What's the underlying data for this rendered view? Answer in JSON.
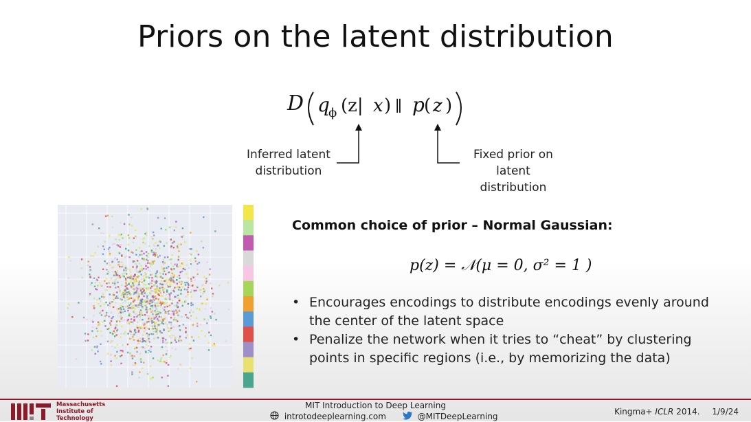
{
  "slide": {
    "title": "Priors on the latent distribution",
    "formula": {
      "D": "D",
      "q": "q",
      "phi": "ϕ",
      "args": "(z|",
      "x": "x",
      "close": ")",
      "parallel": "∥",
      "p": "p",
      "pz": "(",
      "z": "z",
      "pclose": ")"
    },
    "annotations": {
      "left": [
        "Inferred latent",
        "distribution"
      ],
      "right": [
        "Fixed prior on",
        "latent distribution"
      ]
    },
    "subheading": "Common choice of prior – Normal Gaussian:",
    "prior_formula": "p(z) = 𝒩(μ = 0, σ² = 1 )",
    "bullets": [
      {
        "line1": "Encourages encodings to distribute encodings evenly around",
        "line2": "the center of the latent space"
      },
      {
        "line1": "Penalize the network when it tries to “cheat” by clustering",
        "line2": "points in specific regions (i.e., by memorizing the data)"
      }
    ],
    "bullet_char": "•"
  },
  "scatter_colors": [
    "#f2e64a",
    "#b9e6a0",
    "#c05bb0",
    "#d9d9d9",
    "#f7c6e3",
    "#a5d65b",
    "#f0a030",
    "#5b9bd5",
    "#e0504a",
    "#9e8fc8",
    "#e8e070",
    "#4aa58f"
  ],
  "footer": {
    "institution": [
      "Massachusetts",
      "Institute of",
      "Technology"
    ],
    "course": "MIT Introduction to Deep Learning",
    "website": "introtodeeplearning.com",
    "twitter": "@MITDeepLearning",
    "citation_prefix": "Kingma+ ",
    "citation_venue": "ICLR",
    "citation_year": " 2014.",
    "date": "1/9/24"
  }
}
